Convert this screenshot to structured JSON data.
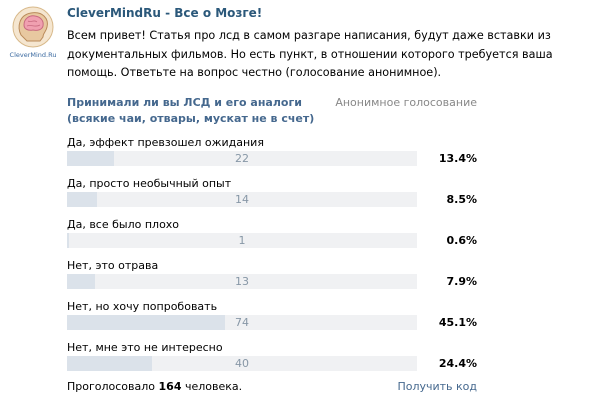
{
  "avatar": {
    "caption": "CleverMind.Ru",
    "icon": "brain-head-icon"
  },
  "post": {
    "author": "CleverMindRu - Все о Мозге!",
    "text": "Всем привет! Статья про лсд в самом разгаре написания, будут даже вставки из документальных фильмов. Но есть пункт, в отношении которого требуется ваша помощь. Ответьте на вопрос честно (голосование анонимное)."
  },
  "poll": {
    "question": "Принимали ли вы ЛСД и его аналоги (всякие чаи, отвары, мускат не в счет)",
    "type": "Анонимное голосование",
    "options": [
      {
        "label": "Да, эффект превзошел ожидания",
        "count": "22",
        "percent": "13.4%",
        "fraction": 0.134
      },
      {
        "label": "Да, просто необычный опыт",
        "count": "14",
        "percent": "8.5%",
        "fraction": 0.085
      },
      {
        "label": "Да, все было плохо",
        "count": "1",
        "percent": "0.6%",
        "fraction": 0.006
      },
      {
        "label": "Нет, это отрава",
        "count": "13",
        "percent": "7.9%",
        "fraction": 0.079
      },
      {
        "label": "Нет, но хочу попробовать",
        "count": "74",
        "percent": "45.1%",
        "fraction": 0.451
      },
      {
        "label": "Нет, мне это не интересно",
        "count": "40",
        "percent": "24.4%",
        "fraction": 0.244
      }
    ],
    "footer": {
      "voted_prefix": "Проголосовало",
      "voted_count": "164",
      "voted_suffix": "человека.",
      "get_code": "Получить код"
    }
  },
  "colors": {
    "link": "#45688e",
    "bar_fill": "#dbe2ea",
    "bar_track": "#f0f1f3"
  }
}
